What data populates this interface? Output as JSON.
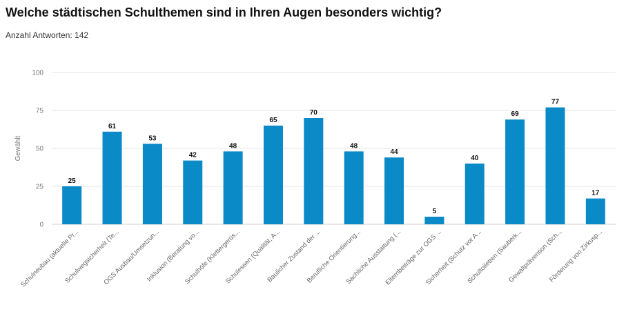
{
  "header": {
    "title": "Welche städtischen Schulthemen sind in Ihren Augen besonders wichtig?",
    "subtitle": "Anzahl Antworten: 142"
  },
  "chart_data": {
    "type": "bar",
    "title": "Welche städtischen Schulthemen sind in Ihren Augen besonders wichtig?",
    "subtitle": "Anzahl Antworten: 142",
    "xlabel": "",
    "ylabel": "Gewählt",
    "ylim": [
      0,
      100
    ],
    "yticks": [
      0,
      25,
      50,
      75,
      100
    ],
    "grid": true,
    "bar_color": "#0a8ac6",
    "categories": [
      "Schulneubau (aktuelle Pr...",
      "Schulwegsicherheit (Te...",
      "OGS Ausbau/Umsetzun...",
      "Inklusion (Beratung vo...",
      "Schulhöfe (Klettergerüs...",
      "Schulessen (Qualität, A...",
      "Baulicher Zustand der ...",
      "Berufliche Orientierung...",
      "Sachliche Ausstattung (...",
      "Elternbeiträge zur OGS ...",
      "Sicherheit (Schutz vor A...",
      "Schultoiletten (Sauberk...",
      "Gewaltprävention (Sch...",
      "Förderung von Zirkusp..."
    ],
    "values": [
      25,
      61,
      53,
      42,
      48,
      65,
      70,
      48,
      44,
      5,
      40,
      69,
      77,
      17
    ]
  }
}
